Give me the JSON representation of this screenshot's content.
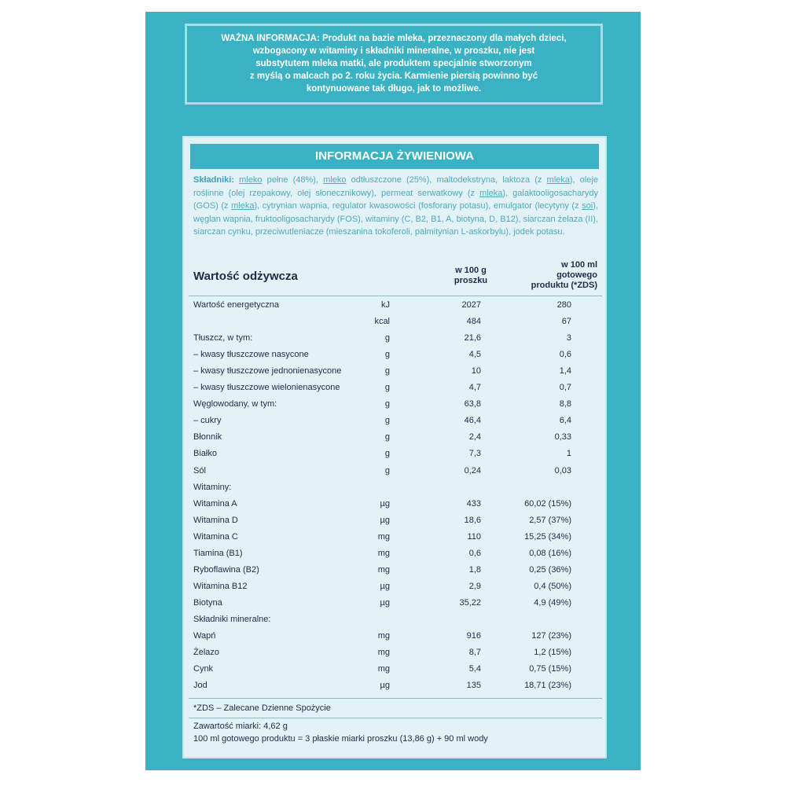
{
  "notice": {
    "lines": [
      "WAŻNA INFORMACJA: Produkt na bazie mleka, przeznaczony dla małych dzieci,",
      "wzbogacony w witaminy i składniki mineralne, w proszku, nie jest",
      "substytutem mleka matki, ale produktem specjalnie stworzonym",
      "z myślą o malcach po 2. roku życia. Karmienie piersią powinno być",
      "kontynuowane tak długo, jak to możliwe."
    ]
  },
  "panel": {
    "title": "INFORMACJA ŻYWIENIOWA",
    "ingredients": {
      "label": "Składniki:",
      "parts": [
        {
          "text": "mleko",
          "underline": true
        },
        {
          "text": " pełne (48%), "
        },
        {
          "text": "mleko",
          "underline": true
        },
        {
          "text": " odtłuszczone (25%), maltodekstryna, laktoza (z "
        },
        {
          "text": "mleka",
          "underline": true
        },
        {
          "text": "), oleje roślinne (olej rzepakowy, olej słonecznikowy), permeat serwatkowy (z "
        },
        {
          "text": "mleka",
          "underline": true
        },
        {
          "text": "), galaktooligosacharydy (GOS) (z "
        },
        {
          "text": "mleka",
          "underline": true
        },
        {
          "text": "), cytrynian wapnia, regulator kwasowości (fosforany potasu), emulgator (lecytyny (z "
        },
        {
          "text": "soi",
          "underline": true
        },
        {
          "text": "), węglan wapnia, fruktooligosacharydy (FOS), witaminy (C, B2, B1, A, biotyna, D, B12), siarczan żelaza (II), siarczan cynku, przeciwutleniacze (mieszanina tokoferoli, palmitynian L-askorbylu), jodek potasu."
        }
      ]
    },
    "table": {
      "heading": "Wartość odżywcza",
      "col_100g": [
        "w 100 g",
        "proszku"
      ],
      "col_100ml": [
        "w 100 ml",
        "gotowego",
        "produktu (*ZDS)"
      ],
      "rows": [
        [
          "Wartość energetyczna",
          "kJ",
          "2027",
          "280"
        ],
        [
          null,
          "kcal",
          "484",
          "67"
        ],
        [
          "Tłuszcz, w tym:",
          "g",
          "21,6",
          "3"
        ],
        [
          "– kwasy tłuszczowe nasycone",
          "g",
          "4,5",
          "0,6"
        ],
        [
          "– kwasy tłuszczowe jednonienasycone",
          "g",
          "10",
          "1,4"
        ],
        [
          "– kwasy tłuszczowe wielonienasycone",
          "g",
          "4,7",
          "0,7"
        ],
        [
          "Węglowodany, w tym:",
          "g",
          "63,8",
          "8,8"
        ],
        [
          "– cukry",
          "g",
          "46,4",
          "6,4"
        ],
        [
          "Błonnik",
          "g",
          "2,4",
          "0,33"
        ],
        [
          "Białko",
          "g",
          "7,3",
          "1"
        ],
        [
          "Sól",
          "g",
          "0,24",
          "0,03"
        ],
        [
          "Witaminy:",
          null,
          null,
          null
        ],
        [
          "Witamina A",
          "µg",
          "433",
          "60,02 (15%)"
        ],
        [
          "Witamina D",
          "µg",
          "18,6",
          "2,57 (37%)"
        ],
        [
          "Witamina C",
          "mg",
          "110",
          "15,25 (34%)"
        ],
        [
          "Tiamina (B1)",
          "mg",
          "0,6",
          "0,08 (16%)"
        ],
        [
          "Ryboflawina (B2)",
          "mg",
          "1,8",
          "0,25 (36%)"
        ],
        [
          "Witamina B12",
          "µg",
          "2,9",
          "0,4 (50%)"
        ],
        [
          "Biotyna",
          "µg",
          "35,22",
          "4,9 (49%)"
        ],
        [
          "Składniki mineralne:",
          null,
          null,
          null
        ],
        [
          "Wapń",
          "mg",
          "916",
          "127 (23%)"
        ],
        [
          "Żelazo",
          "mg",
          "8,7",
          "1,2 (15%)"
        ],
        [
          "Cynk",
          "mg",
          "5,4",
          "0,75 (15%)"
        ],
        [
          "Jod",
          "µg",
          "135",
          "18,71 (23%)"
        ]
      ]
    },
    "footnote": "*ZDS – Zalecane Dzienne Spożycie",
    "footer": [
      "Zawartość miarki: 4,62 g",
      "100 ml gotowego produktu = 3 płaskie miarki proszku (13,86 g) + 90 ml wody"
    ]
  }
}
